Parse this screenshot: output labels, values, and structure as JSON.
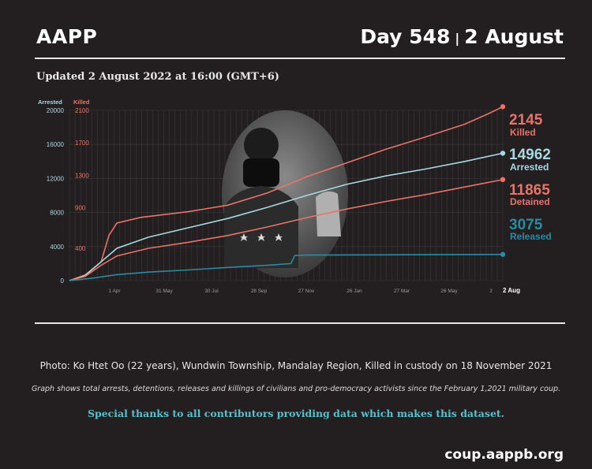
{
  "header": {
    "org": "AAPP",
    "day_label": "Day 548",
    "date_label": "2 August"
  },
  "updated_text": "Updated 2 August 2022 at 16:00 (GMT+6)",
  "chart_data": {
    "type": "line",
    "left_axis": {
      "label": "Arrested",
      "ticks": [
        0,
        4000,
        8000,
        12000,
        16000,
        20000
      ],
      "range": [
        0,
        20000
      ]
    },
    "right_axis": {
      "label": "Killed",
      "ticks": [
        400,
        900,
        1300,
        1700,
        2100
      ],
      "range": [
        0,
        2100
      ]
    },
    "x_ticks": [
      "1 Apr",
      "31 May",
      "30 Jul",
      "28 Sep",
      "27 Nov",
      "26 Jan",
      "27 Mar",
      "26 May",
      "2",
      "2 Aug"
    ],
    "x_range_days": [
      0,
      548
    ],
    "series": [
      {
        "name": "Killed",
        "total": "2145",
        "axis": "right",
        "color": "#e8736a",
        "points": [
          [
            0,
            0
          ],
          [
            20,
            70
          ],
          [
            40,
            230
          ],
          [
            50,
            560
          ],
          [
            60,
            710
          ],
          [
            90,
            780
          ],
          [
            150,
            850
          ],
          [
            200,
            930
          ],
          [
            250,
            1080
          ],
          [
            300,
            1280
          ],
          [
            350,
            1450
          ],
          [
            400,
            1620
          ],
          [
            450,
            1770
          ],
          [
            500,
            1930
          ],
          [
            530,
            2060
          ],
          [
            548,
            2145
          ]
        ]
      },
      {
        "name": "Arrested",
        "total": "14962",
        "axis": "left",
        "color": "#a9d8e3",
        "points": [
          [
            0,
            0
          ],
          [
            20,
            600
          ],
          [
            40,
            2200
          ],
          [
            60,
            3800
          ],
          [
            100,
            5100
          ],
          [
            150,
            6200
          ],
          [
            200,
            7300
          ],
          [
            250,
            8600
          ],
          [
            300,
            10000
          ],
          [
            350,
            11300
          ],
          [
            400,
            12300
          ],
          [
            450,
            13100
          ],
          [
            500,
            14000
          ],
          [
            548,
            14962
          ]
        ]
      },
      {
        "name": "Detained",
        "total": "11865",
        "axis": "left",
        "color": "#e8736a",
        "points": [
          [
            0,
            0
          ],
          [
            20,
            500
          ],
          [
            40,
            1800
          ],
          [
            60,
            2900
          ],
          [
            100,
            3800
          ],
          [
            150,
            4500
          ],
          [
            200,
            5300
          ],
          [
            250,
            6300
          ],
          [
            300,
            7400
          ],
          [
            350,
            8400
          ],
          [
            400,
            9300
          ],
          [
            450,
            10100
          ],
          [
            500,
            11000
          ],
          [
            548,
            11865
          ]
        ]
      },
      {
        "name": "Released",
        "total": "3075",
        "axis": "left",
        "color": "#2c8aa3",
        "points": [
          [
            0,
            0
          ],
          [
            30,
            300
          ],
          [
            60,
            700
          ],
          [
            100,
            1000
          ],
          [
            150,
            1250
          ],
          [
            200,
            1550
          ],
          [
            250,
            1800
          ],
          [
            280,
            2000
          ],
          [
            285,
            2950
          ],
          [
            300,
            3000
          ],
          [
            400,
            3030
          ],
          [
            548,
            3075
          ]
        ]
      }
    ]
  },
  "captions": {
    "photo": "Photo: Ko Htet Oo (22 years), Wundwin Township, Mandalay Region, Killed in custody on 18 November 2021",
    "graph_note": "Graph shows total arrests, detentions, releases and killings of civilians and pro-democracy activists since the February 1,2021 military coup.",
    "thanks": "Special thanks to all contributors providing data which makes this dataset."
  },
  "footer": {
    "site": "coup.aappb.org"
  },
  "colors": {
    "background": "#231f20",
    "red": "#e8736a",
    "light_blue": "#a9d8e3",
    "dark_blue": "#2c8aa3"
  }
}
